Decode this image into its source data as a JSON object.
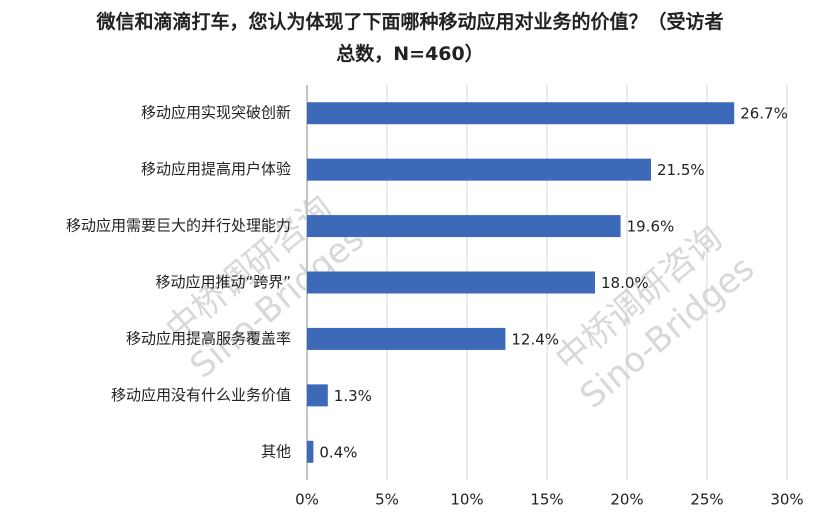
{
  "chart_data": {
    "type": "bar",
    "orientation": "horizontal",
    "title": "微信和滴滴打车，您认为体现了下面哪种移动应用对业务的价值？（受访者总数，N=460）",
    "categories": [
      "移动应用实现突破创新",
      "移动应用提高用户体验",
      "移动应用需要巨大的并行处理能力",
      "移动应用推动“跨界”",
      "移动应用提高服务覆盖率",
      "移动应用没有什么业务价值",
      "其他"
    ],
    "values": [
      26.7,
      21.5,
      19.6,
      18.0,
      12.4,
      1.3,
      0.4
    ],
    "value_labels": [
      "26.7%",
      "21.5%",
      "19.6%",
      "18.0%",
      "12.4%",
      "1.3%",
      "0.4%"
    ],
    "color": "#3c69b8",
    "xlim": [
      0,
      30
    ],
    "xticks": [
      {
        "value": 0,
        "label": "0%"
      },
      {
        "value": 5,
        "label": "5%"
      },
      {
        "value": 10,
        "label": "10%"
      },
      {
        "value": 15,
        "label": "15%"
      },
      {
        "value": 20,
        "label": "20%"
      },
      {
        "value": 25,
        "label": "25%"
      },
      {
        "value": 30,
        "label": "30%"
      }
    ],
    "grid": true,
    "watermark": [
      "中桥调研咨询",
      "Sino-Bridges"
    ]
  }
}
